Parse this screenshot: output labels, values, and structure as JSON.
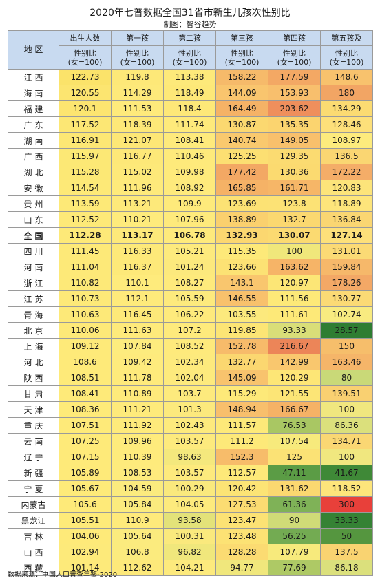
{
  "title": "2020年七普数据全国31省市新生儿孩次性别比",
  "subtitle": "制图：智谷趋势",
  "table": {
    "corner_label": "地 区",
    "columns": [
      "出生人数",
      "第一孩",
      "第二孩",
      "第三孩",
      "第四孩",
      "第五孩及"
    ],
    "subheader": "性别比\n(女=100)",
    "rows": [
      {
        "region": "江西",
        "values": [
          "122.73",
          "119.8",
          "113.38",
          "158.22",
          "177.59",
          "148.6"
        ],
        "colors": [
          "#fbe36a",
          "#fde878",
          "#fde97a",
          "#f6ba6a",
          "#f3a864",
          "#f8c26d"
        ]
      },
      {
        "region": "海南",
        "values": [
          "120.55",
          "114.29",
          "118.49",
          "144.09",
          "153.93",
          "180"
        ],
        "colors": [
          "#fce570",
          "#fde97a",
          "#fde878",
          "#f9c56e",
          "#f8bf6d",
          "#f2a564"
        ]
      },
      {
        "region": "福建",
        "values": [
          "120.1",
          "111.53",
          "118.4",
          "164.49",
          "203.62",
          "134.29"
        ],
        "colors": [
          "#fce570",
          "#feea7b",
          "#fde878",
          "#f5b266",
          "#ef8f5c",
          "#fbdb72"
        ]
      },
      {
        "region": "广东",
        "values": [
          "117.52",
          "118.39",
          "111.74",
          "130.87",
          "135.35",
          "128.46"
        ],
        "colors": [
          "#fce774",
          "#fde878",
          "#feea7b",
          "#fbd870",
          "#fbd46f",
          "#fde07a"
        ]
      },
      {
        "region": "湖南",
        "values": [
          "116.91",
          "121.07",
          "108.41",
          "140.74",
          "149.05",
          "108.97"
        ],
        "colors": [
          "#fce774",
          "#fde776",
          "#feea7c",
          "#f9c96e",
          "#f8c06c",
          "#fdeb7d"
        ]
      },
      {
        "region": "广西",
        "values": [
          "115.97",
          "116.77",
          "110.46",
          "125.25",
          "129.35",
          "136.5"
        ],
        "colors": [
          "#fce875",
          "#fde878",
          "#feea7b",
          "#fcdf72",
          "#fbdb71",
          "#fad672"
        ]
      },
      {
        "region": "湖北",
        "values": [
          "115.28",
          "115.02",
          "109.98",
          "177.42",
          "130.36",
          "172.22"
        ],
        "colors": [
          "#fce875",
          "#fde979",
          "#feea7b",
          "#f3a864",
          "#fbda70",
          "#f4ad68"
        ]
      },
      {
        "region": "安徽",
        "values": [
          "114.54",
          "111.96",
          "108.92",
          "165.85",
          "161.71",
          "120.83"
        ],
        "colors": [
          "#fde977",
          "#feea7b",
          "#feea7c",
          "#f5b266",
          "#f6b667",
          "#fce47a"
        ]
      },
      {
        "region": "贵州",
        "values": [
          "113.59",
          "113.21",
          "109.9",
          "123.69",
          "123.8",
          "118.89"
        ],
        "colors": [
          "#fde977",
          "#fde97a",
          "#feea7b",
          "#fce274",
          "#fce275",
          "#fde57b"
        ]
      },
      {
        "region": "山东",
        "values": [
          "112.52",
          "110.21",
          "107.96",
          "138.89",
          "132.7",
          "136.84"
        ],
        "colors": [
          "#fde978",
          "#feeb7c",
          "#feea7c",
          "#fad06e",
          "#fbd870",
          "#fad672"
        ]
      },
      {
        "region": "全国",
        "values": [
          "112.28",
          "113.17",
          "106.78",
          "132.93",
          "130.07",
          "127.14"
        ],
        "colors": [
          "#fde978",
          "#fde97a",
          "#feea7c",
          "#fbd770",
          "#fbda71",
          "#fde07a"
        ]
      },
      {
        "region": "四川",
        "values": [
          "111.45",
          "116.33",
          "105.21",
          "115.35",
          "100",
          "131.01"
        ],
        "colors": [
          "#fde978",
          "#fde979",
          "#fdea7d",
          "#fde979",
          "#f0e77b",
          "#fbda75"
        ]
      },
      {
        "region": "河南",
        "values": [
          "111.04",
          "116.37",
          "101.24",
          "123.66",
          "163.62",
          "159.84"
        ],
        "colors": [
          "#fde978",
          "#fde979",
          "#fce97d",
          "#fce274",
          "#f6b467",
          "#f6b86a"
        ]
      },
      {
        "region": "浙江",
        "values": [
          "110.82",
          "110.1",
          "108.27",
          "143.1",
          "120.97",
          "178.26"
        ],
        "colors": [
          "#fde978",
          "#feeb7c",
          "#feea7c",
          "#f9c66e",
          "#fce676",
          "#f3a866"
        ]
      },
      {
        "region": "江苏",
        "values": [
          "110.73",
          "112.1",
          "105.59",
          "146.55",
          "111.56",
          "130.77"
        ],
        "colors": [
          "#fde978",
          "#feea7b",
          "#fdea7d",
          "#f8c16c",
          "#fde978",
          "#fbda75"
        ]
      },
      {
        "region": "青海",
        "values": [
          "110.63",
          "116.45",
          "106.22",
          "103.55",
          "111.61",
          "102.74"
        ],
        "colors": [
          "#fde978",
          "#fde979",
          "#feea7c",
          "#fce97d",
          "#fde978",
          "#f8eb80"
        ]
      },
      {
        "region": "北京",
        "values": [
          "110.06",
          "111.63",
          "107.2",
          "119.85",
          "93.33",
          "28.57"
        ],
        "colors": [
          "#fde978",
          "#feea7b",
          "#feea7c",
          "#fce575",
          "#d9de78",
          "#2e7d32"
        ]
      },
      {
        "region": "上海",
        "values": [
          "109.12",
          "107.84",
          "108.52",
          "152.78",
          "216.67",
          "150"
        ],
        "colors": [
          "#feea79",
          "#fdec7e",
          "#feea7c",
          "#f7bb6a",
          "#ec8558",
          "#f6be6b"
        ]
      },
      {
        "region": "河北",
        "values": [
          "108.6",
          "109.42",
          "102.34",
          "132.77",
          "142.99",
          "163.46"
        ],
        "colors": [
          "#feea79",
          "#feeb7d",
          "#fdea7d",
          "#fbd770",
          "#f9c76e",
          "#f5b569"
        ]
      },
      {
        "region": "陕西",
        "values": [
          "108.51",
          "111.78",
          "102.04",
          "145.09",
          "120.29",
          "80"
        ],
        "colors": [
          "#feea79",
          "#feea7b",
          "#fdea7d",
          "#f8c36d",
          "#fde676",
          "#c9d978"
        ]
      },
      {
        "region": "甘肃",
        "values": [
          "108.41",
          "110.89",
          "103.7",
          "115.29",
          "121.55",
          "139.51"
        ],
        "colors": [
          "#feea79",
          "#feea7b",
          "#fdea7d",
          "#fde979",
          "#fce576",
          "#f9d071"
        ]
      },
      {
        "region": "天津",
        "values": [
          "108.36",
          "111.21",
          "101.3",
          "148.94",
          "166.67",
          "100"
        ],
        "colors": [
          "#feea79",
          "#feea7b",
          "#fce97d",
          "#f8bf6c",
          "#f5b266",
          "#f0e77f"
        ]
      },
      {
        "region": "重庆",
        "values": [
          "107.51",
          "111.92",
          "102.43",
          "111.57",
          "76.53",
          "86.36"
        ],
        "colors": [
          "#feea79",
          "#feea7b",
          "#fdea7d",
          "#fde979",
          "#a9c763",
          "#dbe07c"
        ]
      },
      {
        "region": "云南",
        "values": [
          "107.25",
          "109.96",
          "103.57",
          "111.2",
          "107.54",
          "134.71"
        ],
        "colors": [
          "#feea79",
          "#feeb7c",
          "#fdea7d",
          "#fde979",
          "#f7ea7c",
          "#fad773"
        ]
      },
      {
        "region": "辽宁",
        "values": [
          "107.15",
          "110.39",
          "98.63",
          "152.3",
          "125",
          "100"
        ],
        "colors": [
          "#feea79",
          "#feeb7c",
          "#f4e87d",
          "#f7bc6a",
          "#fbe275",
          "#f0e77f"
        ]
      },
      {
        "region": "新疆",
        "values": [
          "105.89",
          "108.53",
          "103.57",
          "112.57",
          "47.11",
          "41.67"
        ],
        "colors": [
          "#feea79",
          "#feeb7d",
          "#fdea7d",
          "#fde979",
          "#5b9c45",
          "#3f8937"
        ]
      },
      {
        "region": "宁夏",
        "values": [
          "105.67",
          "104.59",
          "100.29",
          "120.42",
          "131.62",
          "118.52"
        ],
        "colors": [
          "#feea79",
          "#fbeb7e",
          "#fae97d",
          "#fce475",
          "#fbd870",
          "#fde57b"
        ]
      },
      {
        "region": "内蒙古",
        "values": [
          "105.6",
          "105.84",
          "104.05",
          "127.53",
          "61.36",
          "300"
        ],
        "colors": [
          "#feea79",
          "#fbeb7e",
          "#fdea7d",
          "#fbdc72",
          "#7fb257",
          "#e8403a"
        ]
      },
      {
        "region": "黑龙江",
        "values": [
          "105.51",
          "110.9",
          "93.58",
          "123.47",
          "90",
          "33.33"
        ],
        "colors": [
          "#feea79",
          "#feea7b",
          "#e3e279",
          "#fce274",
          "#d0db77",
          "#358234"
        ]
      },
      {
        "region": "吉林",
        "values": [
          "104.06",
          "105.64",
          "100.31",
          "123.48",
          "56.25",
          "50"
        ],
        "colors": [
          "#feea79",
          "#fbeb7e",
          "#fae97d",
          "#fce274",
          "#73ab52",
          "#55963f"
        ]
      },
      {
        "region": "山西",
        "values": [
          "102.94",
          "106.8",
          "96.82",
          "128.28",
          "107.79",
          "137.5"
        ],
        "colors": [
          "#fdea7a",
          "#fbeb7e",
          "#f0e77c",
          "#fbdb72",
          "#f7ea7c",
          "#f9d371"
        ]
      },
      {
        "region": "西藏",
        "values": [
          "101.14",
          "112.62",
          "104.21",
          "94.77",
          "77.69",
          "86.18"
        ],
        "colors": [
          "#fdea7a",
          "#fde97a",
          "#fdea7d",
          "#f0e77c",
          "#aec965",
          "#dbe07c"
        ]
      }
    ]
  },
  "source": "数据来源：中国人口普查年鉴-2020"
}
